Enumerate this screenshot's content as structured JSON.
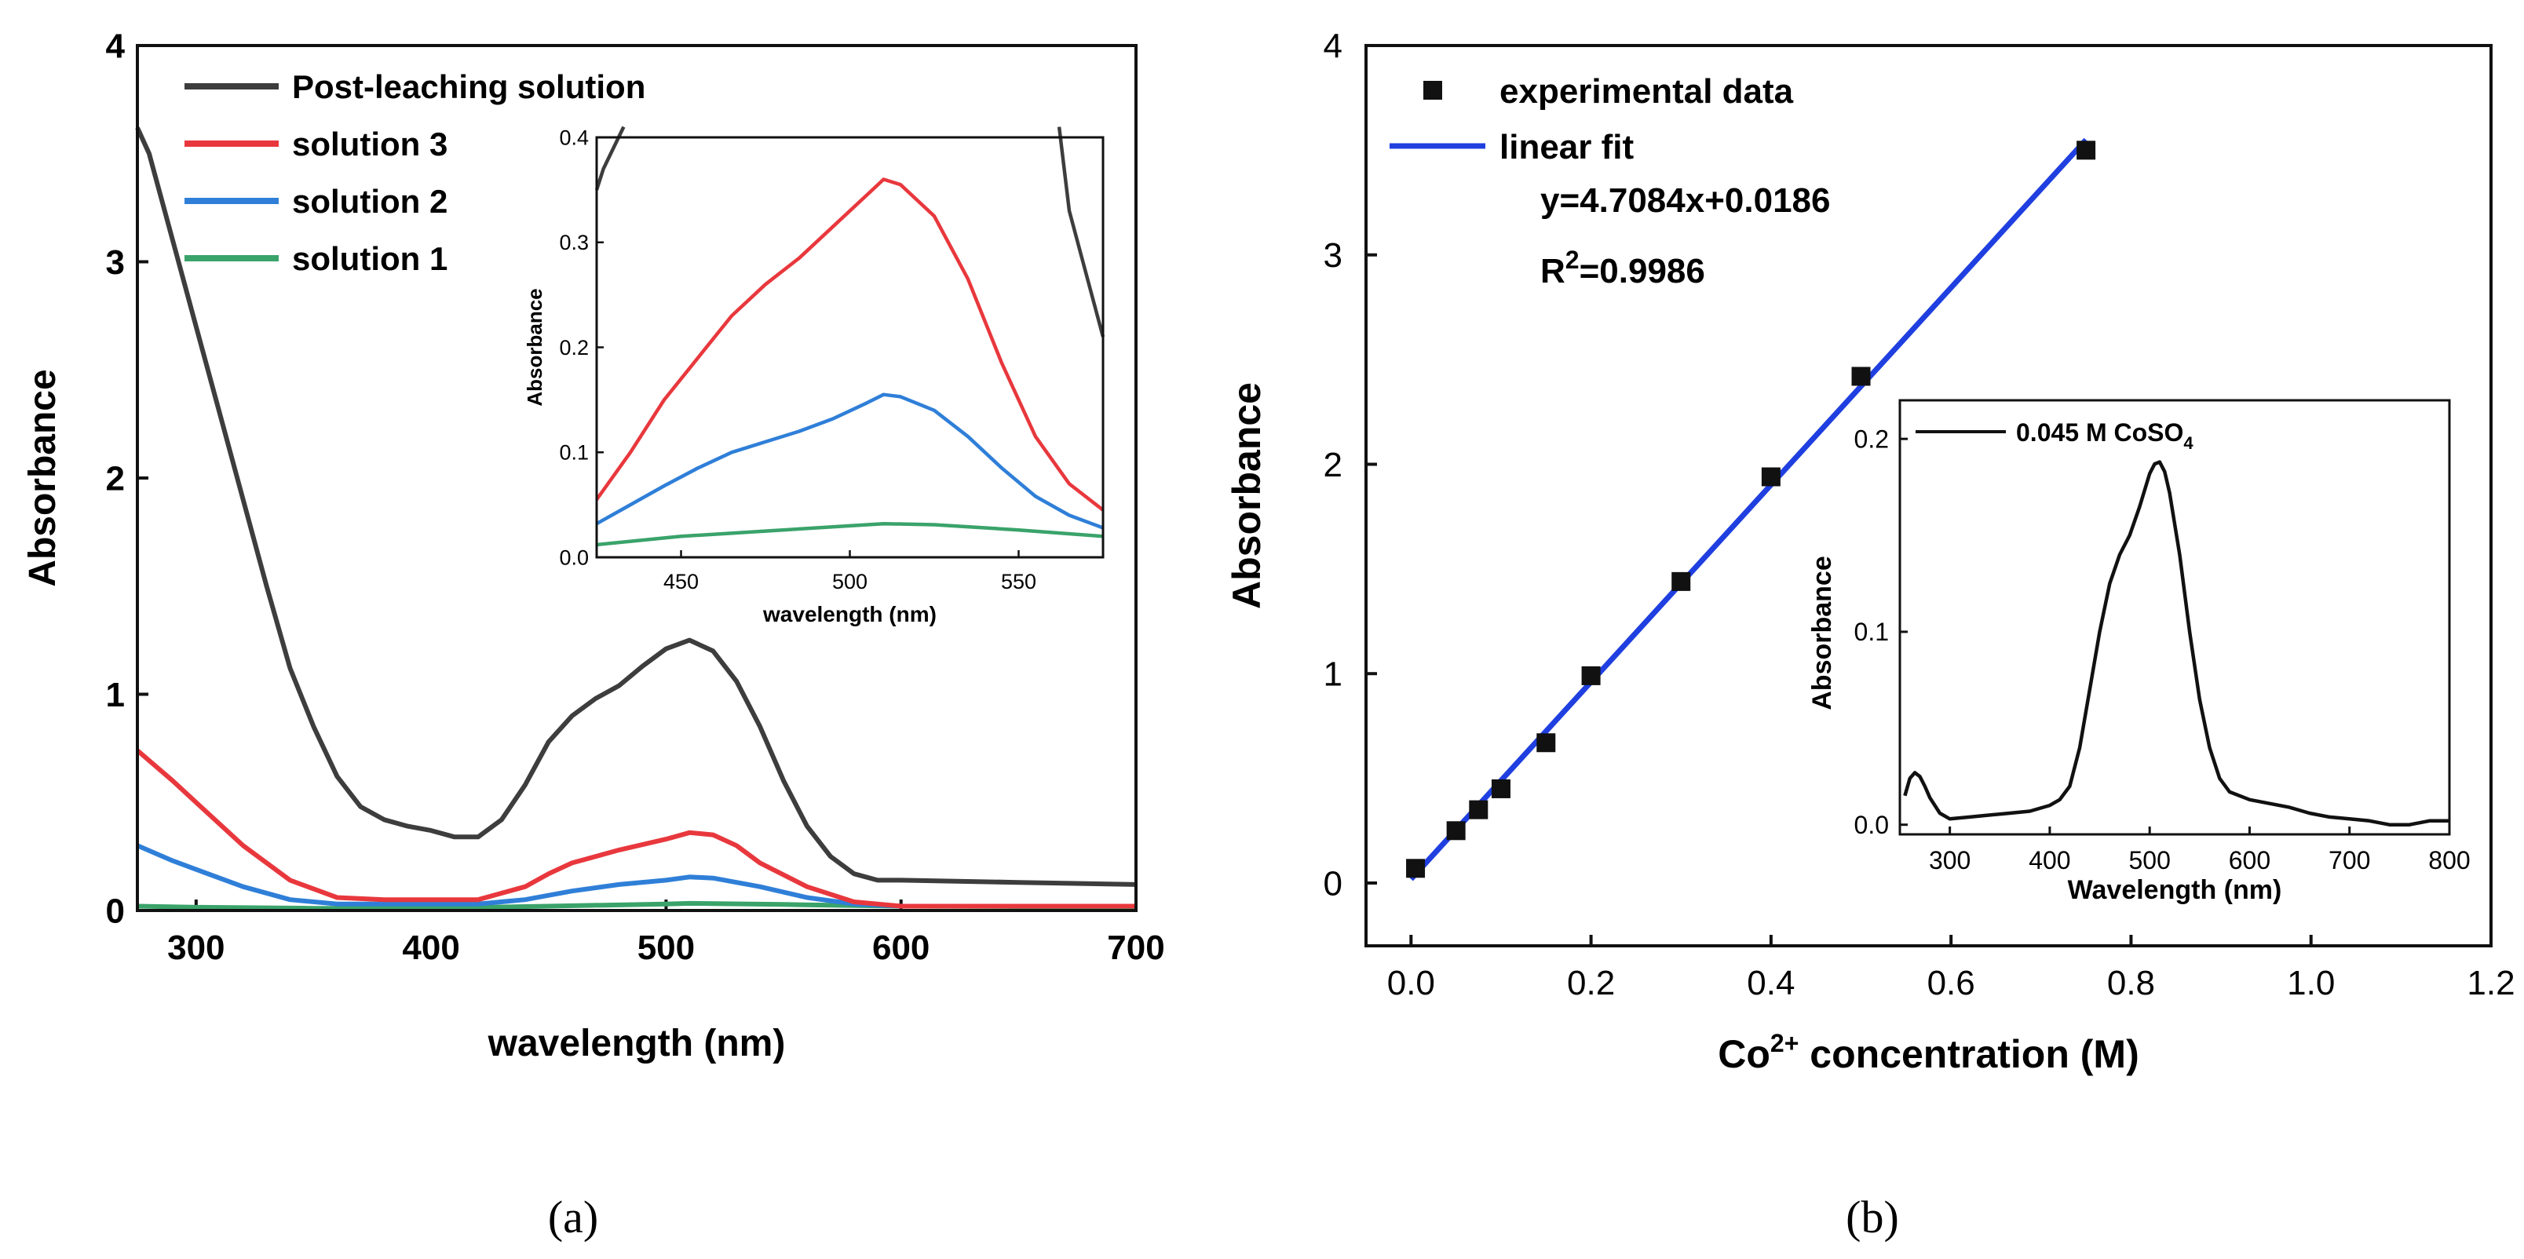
{
  "figure": {
    "label_a": "(a)",
    "label_b": "(b)"
  },
  "chart_data": [
    {
      "id": "a-main",
      "type": "line",
      "xlabel": "wavelength (nm)",
      "ylabel": "Absorbance",
      "xlim": [
        275,
        700
      ],
      "ylim": [
        0,
        4
      ],
      "xticks": [
        300,
        400,
        500,
        600,
        700
      ],
      "yticks": [
        0,
        1,
        2,
        3,
        4
      ],
      "legend_position": "top-left",
      "series": [
        {
          "name": "Post-leaching solution",
          "color": "#3d3d3d",
          "x": [
            275,
            280,
            290,
            300,
            310,
            320,
            330,
            340,
            350,
            360,
            370,
            380,
            390,
            400,
            410,
            420,
            430,
            440,
            450,
            460,
            470,
            480,
            490,
            500,
            510,
            520,
            530,
            540,
            550,
            560,
            570,
            580,
            590,
            600,
            650,
            700
          ],
          "y": [
            3.62,
            3.5,
            3.1,
            2.7,
            2.3,
            1.9,
            1.5,
            1.12,
            0.85,
            0.62,
            0.48,
            0.42,
            0.39,
            0.37,
            0.34,
            0.34,
            0.42,
            0.58,
            0.78,
            0.9,
            0.98,
            1.04,
            1.13,
            1.21,
            1.25,
            1.2,
            1.06,
            0.85,
            0.6,
            0.39,
            0.25,
            0.17,
            0.14,
            0.14,
            0.13,
            0.12
          ]
        },
        {
          "name": "solution 3",
          "color": "#e8383d",
          "x": [
            275,
            290,
            300,
            320,
            340,
            360,
            380,
            400,
            420,
            440,
            450,
            460,
            480,
            500,
            510,
            520,
            530,
            540,
            560,
            580,
            600,
            650,
            700
          ],
          "y": [
            0.74,
            0.6,
            0.5,
            0.3,
            0.14,
            0.06,
            0.05,
            0.05,
            0.05,
            0.11,
            0.17,
            0.22,
            0.28,
            0.33,
            0.36,
            0.35,
            0.3,
            0.22,
            0.11,
            0.04,
            0.02,
            0.02,
            0.02
          ]
        },
        {
          "name": "solution 2",
          "color": "#2f7fd8",
          "x": [
            275,
            290,
            300,
            320,
            340,
            360,
            380,
            400,
            420,
            440,
            450,
            460,
            480,
            500,
            510,
            520,
            540,
            560,
            580,
            600,
            650,
            700
          ],
          "y": [
            0.3,
            0.23,
            0.19,
            0.11,
            0.05,
            0.03,
            0.03,
            0.03,
            0.03,
            0.05,
            0.07,
            0.09,
            0.12,
            0.14,
            0.155,
            0.15,
            0.11,
            0.06,
            0.03,
            0.02,
            0.02,
            0.02
          ]
        },
        {
          "name": "solution 1",
          "color": "#3aa36a",
          "x": [
            275,
            300,
            350,
            400,
            450,
            500,
            510,
            550,
            600,
            650,
            700
          ],
          "y": [
            0.02,
            0.015,
            0.01,
            0.01,
            0.02,
            0.03,
            0.033,
            0.028,
            0.02,
            0.018,
            0.015
          ]
        }
      ]
    },
    {
      "id": "a-inset",
      "type": "line",
      "xlabel": "wavelength (nm)",
      "ylabel": "Absorbance",
      "xlim": [
        425,
        575
      ],
      "ylim": [
        0,
        0.4
      ],
      "xticks": [
        450,
        500,
        550
      ],
      "yticks": [
        0.0,
        0.1,
        0.2,
        0.3,
        0.4
      ],
      "series": [
        {
          "name": "Post-leaching solution",
          "color": "#3d3d3d",
          "x": [
            425,
            427,
            430,
            433
          ],
          "y": [
            0.35,
            0.37,
            0.39,
            0.41
          ],
          "x2": [
            562,
            565,
            570,
            575
          ],
          "y2": [
            0.41,
            0.33,
            0.27,
            0.21
          ]
        },
        {
          "name": "solution 3",
          "color": "#e8383d",
          "x": [
            425,
            435,
            445,
            455,
            465,
            475,
            485,
            495,
            505,
            510,
            515,
            525,
            535,
            545,
            555,
            565,
            575
          ],
          "y": [
            0.055,
            0.1,
            0.15,
            0.19,
            0.23,
            0.26,
            0.285,
            0.315,
            0.345,
            0.36,
            0.355,
            0.325,
            0.265,
            0.185,
            0.115,
            0.07,
            0.045
          ]
        },
        {
          "name": "solution 2",
          "color": "#2f7fd8",
          "x": [
            425,
            435,
            445,
            455,
            465,
            475,
            485,
            495,
            505,
            510,
            515,
            525,
            535,
            545,
            555,
            565,
            575
          ],
          "y": [
            0.032,
            0.05,
            0.068,
            0.085,
            0.1,
            0.11,
            0.12,
            0.132,
            0.147,
            0.155,
            0.153,
            0.14,
            0.115,
            0.085,
            0.058,
            0.04,
            0.028
          ]
        },
        {
          "name": "solution 1",
          "color": "#3aa36a",
          "x": [
            425,
            450,
            475,
            500,
            510,
            525,
            550,
            575
          ],
          "y": [
            0.012,
            0.02,
            0.025,
            0.03,
            0.032,
            0.031,
            0.026,
            0.02
          ]
        }
      ]
    },
    {
      "id": "b-main",
      "type": "scatter",
      "xlabel": "Co",
      "xlabel_sup": "2+",
      "xlabel_rest": " concentration (M)",
      "ylabel": "Absorbance",
      "xlim": [
        -0.05,
        1.2
      ],
      "ylim": [
        -0.3,
        4
      ],
      "xticks": [
        0.0,
        0.2,
        0.4,
        0.6,
        0.8,
        1.0,
        1.2
      ],
      "xtick_labels": [
        "0.0",
        "0.2",
        "0.4",
        "0.6",
        "0.8",
        "1.0",
        "1.2"
      ],
      "yticks": [
        0,
        1,
        2,
        3,
        4
      ],
      "legend_position": "top-left",
      "points": {
        "name": "experimental data",
        "color": "#111111",
        "x": [
          0.005,
          0.05,
          0.075,
          0.1,
          0.15,
          0.2,
          0.3,
          0.4,
          0.5,
          0.75
        ],
        "y": [
          0.07,
          0.25,
          0.35,
          0.45,
          0.67,
          0.99,
          1.44,
          1.94,
          2.42,
          3.5
        ]
      },
      "fit": {
        "name": "linear fit",
        "color": "#1f3fe0",
        "slope": 4.7084,
        "intercept": 0.0186,
        "x_range": [
          0.0,
          0.75
        ]
      },
      "equation": "y=4.7084x+0.0186",
      "r2_prefix": "R",
      "r2_sup": "2",
      "r2_suffix": "=0.9986"
    },
    {
      "id": "b-inset",
      "type": "line",
      "xlabel": "Wavelength (nm)",
      "ylabel": "Absorbance",
      "xlim": [
        250,
        800
      ],
      "ylim": [
        -0.005,
        0.22
      ],
      "xticks": [
        300,
        400,
        500,
        600,
        700,
        800
      ],
      "yticks": [
        0.0,
        0.1,
        0.2
      ],
      "ytick_labels": [
        "0.0",
        "0.1",
        "0.2"
      ],
      "legend_prefix": "0.045 M CoSO",
      "legend_sub": "4",
      "series": [
        {
          "name": "0.045 M CoSO4",
          "color": "#111111",
          "x": [
            255,
            260,
            265,
            270,
            275,
            280,
            290,
            300,
            320,
            340,
            360,
            380,
            400,
            410,
            420,
            430,
            440,
            450,
            460,
            470,
            480,
            490,
            500,
            505,
            510,
            515,
            520,
            530,
            540,
            550,
            560,
            570,
            580,
            600,
            620,
            640,
            660,
            680,
            700,
            720,
            740,
            760,
            780,
            800
          ],
          "y": [
            0.015,
            0.024,
            0.027,
            0.025,
            0.02,
            0.014,
            0.006,
            0.003,
            0.004,
            0.005,
            0.006,
            0.007,
            0.01,
            0.013,
            0.02,
            0.04,
            0.07,
            0.1,
            0.125,
            0.14,
            0.15,
            0.165,
            0.182,
            0.187,
            0.188,
            0.183,
            0.172,
            0.14,
            0.1,
            0.065,
            0.04,
            0.024,
            0.017,
            0.013,
            0.011,
            0.009,
            0.006,
            0.004,
            0.003,
            0.002,
            0.0,
            0.0,
            0.002,
            0.002
          ]
        }
      ]
    }
  ]
}
